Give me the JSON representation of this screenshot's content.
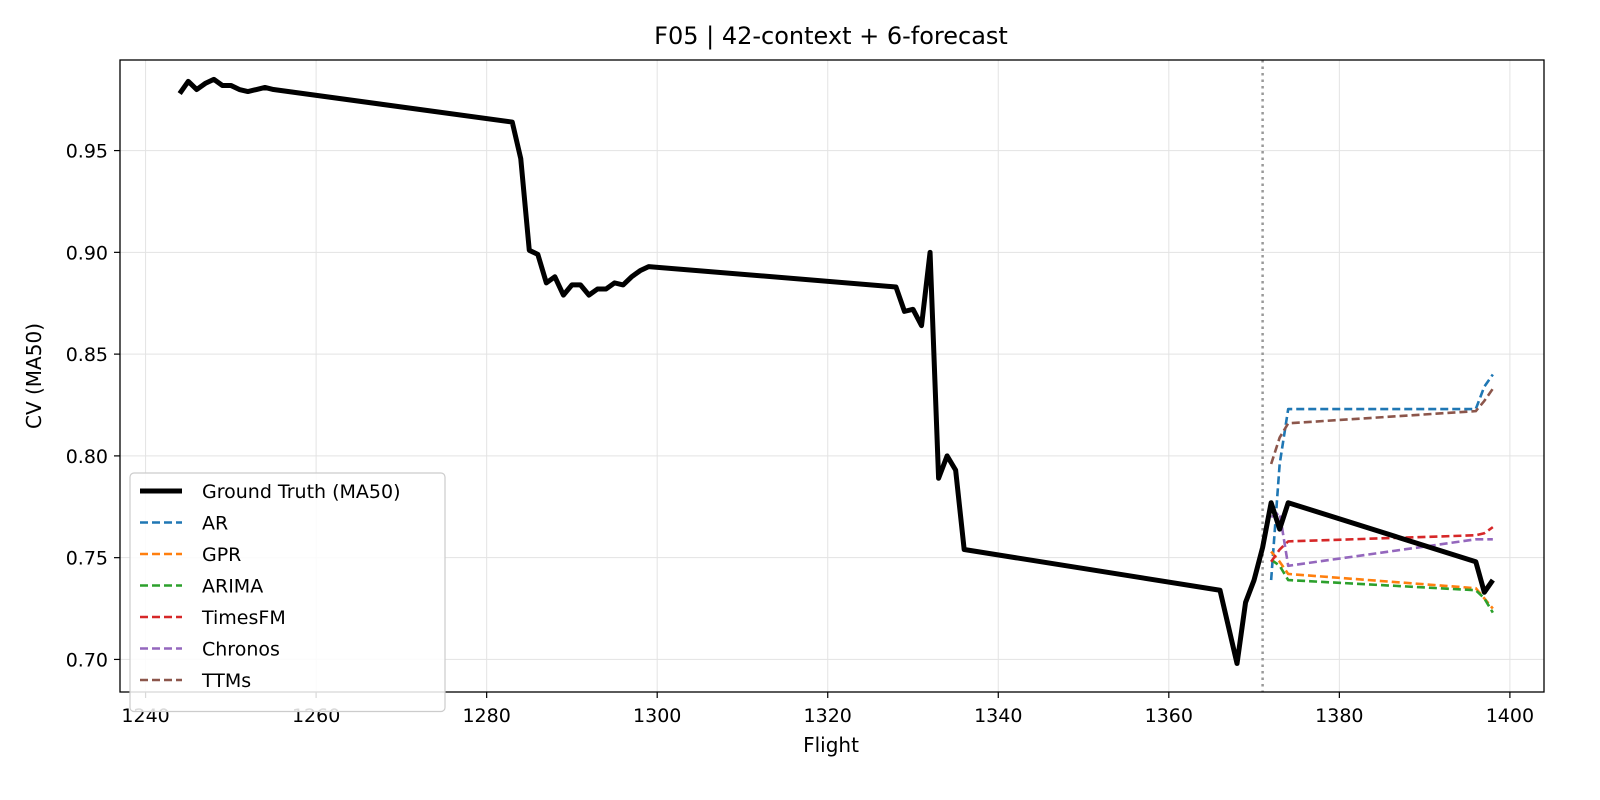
{
  "chart_data": {
    "type": "line",
    "title": "F05 | 42-context + 6-forecast",
    "xlabel": "Flight",
    "ylabel": "CV (MA50)",
    "xlim": [
      1237,
      1404
    ],
    "ylim": [
      0.684,
      0.9945
    ],
    "xticks": [
      1240,
      1260,
      1280,
      1300,
      1320,
      1340,
      1360,
      1380,
      1400
    ],
    "xtick_labels": [
      "1240",
      "1260",
      "1280",
      "1300",
      "1320",
      "1340",
      "1360",
      "1380",
      "1400"
    ],
    "yticks": [
      0.7,
      0.75,
      0.8,
      0.85,
      0.9,
      0.95
    ],
    "ytick_labels": [
      "0.70",
      "0.75",
      "0.80",
      "0.85",
      "0.90",
      "0.95"
    ],
    "grid": true,
    "legend_position": "lower-left",
    "forecast_start_x": 1371,
    "forecast_line_color": "#999999",
    "series": [
      {
        "name": "Ground Truth (MA50)",
        "color": "#000000",
        "style": "solid",
        "x": [
          1244,
          1245,
          1246,
          1247,
          1248,
          1249,
          1250,
          1251,
          1252,
          1253,
          1254,
          1255,
          1283,
          1284,
          1285,
          1286,
          1287,
          1288,
          1289,
          1290,
          1291,
          1292,
          1293,
          1294,
          1295,
          1296,
          1297,
          1298,
          1299,
          1328,
          1329,
          1330,
          1331,
          1332,
          1333,
          1334,
          1335,
          1336,
          1366,
          1367,
          1368,
          1369,
          1370,
          1371,
          1372,
          1373,
          1374,
          1396,
          1397,
          1398
        ],
        "y": [
          0.978,
          0.984,
          0.98,
          0.983,
          0.985,
          0.982,
          0.982,
          0.98,
          0.979,
          0.98,
          0.981,
          0.98,
          0.964,
          0.946,
          0.901,
          0.899,
          0.885,
          0.888,
          0.879,
          0.884,
          0.884,
          0.879,
          0.882,
          0.882,
          0.885,
          0.884,
          0.888,
          0.891,
          0.893,
          0.883,
          0.871,
          0.872,
          0.864,
          0.9,
          0.789,
          0.8,
          0.793,
          0.754,
          0.734,
          0.716,
          0.698,
          0.728,
          0.739,
          0.755,
          0.777,
          0.764,
          0.777,
          0.748,
          0.733,
          0.739
        ]
      },
      {
        "name": "AR",
        "color": "#1f77b4",
        "style": "dashed",
        "x": [
          1372,
          1373,
          1374,
          1396,
          1397,
          1398
        ],
        "y": [
          0.739,
          0.796,
          0.823,
          0.823,
          0.834,
          0.84
        ]
      },
      {
        "name": "GPR",
        "color": "#ff7f0e",
        "style": "dashed",
        "x": [
          1372,
          1373,
          1374,
          1396,
          1397,
          1398
        ],
        "y": [
          0.753,
          0.748,
          0.742,
          0.735,
          0.73,
          0.725
        ]
      },
      {
        "name": "ARIMA",
        "color": "#2ca02c",
        "style": "dashed",
        "x": [
          1372,
          1373,
          1374,
          1396,
          1397,
          1398
        ],
        "y": [
          0.749,
          0.746,
          0.739,
          0.734,
          0.73,
          0.723
        ]
      },
      {
        "name": "TimesFM",
        "color": "#d62728",
        "style": "dashed",
        "x": [
          1372,
          1373,
          1374,
          1396,
          1397,
          1398
        ],
        "y": [
          0.748,
          0.754,
          0.758,
          0.761,
          0.762,
          0.765
        ]
      },
      {
        "name": "Chronos",
        "color": "#9467bd",
        "style": "dashed",
        "x": [
          1372,
          1373,
          1374,
          1396,
          1397,
          1398
        ],
        "y": [
          0.77,
          0.772,
          0.746,
          0.759,
          0.759,
          0.759
        ]
      },
      {
        "name": "TTMs",
        "color": "#8c564b",
        "style": "dashed",
        "x": [
          1372,
          1373,
          1374,
          1396,
          1397,
          1398
        ],
        "y": [
          0.796,
          0.809,
          0.816,
          0.822,
          0.827,
          0.833
        ]
      }
    ]
  }
}
